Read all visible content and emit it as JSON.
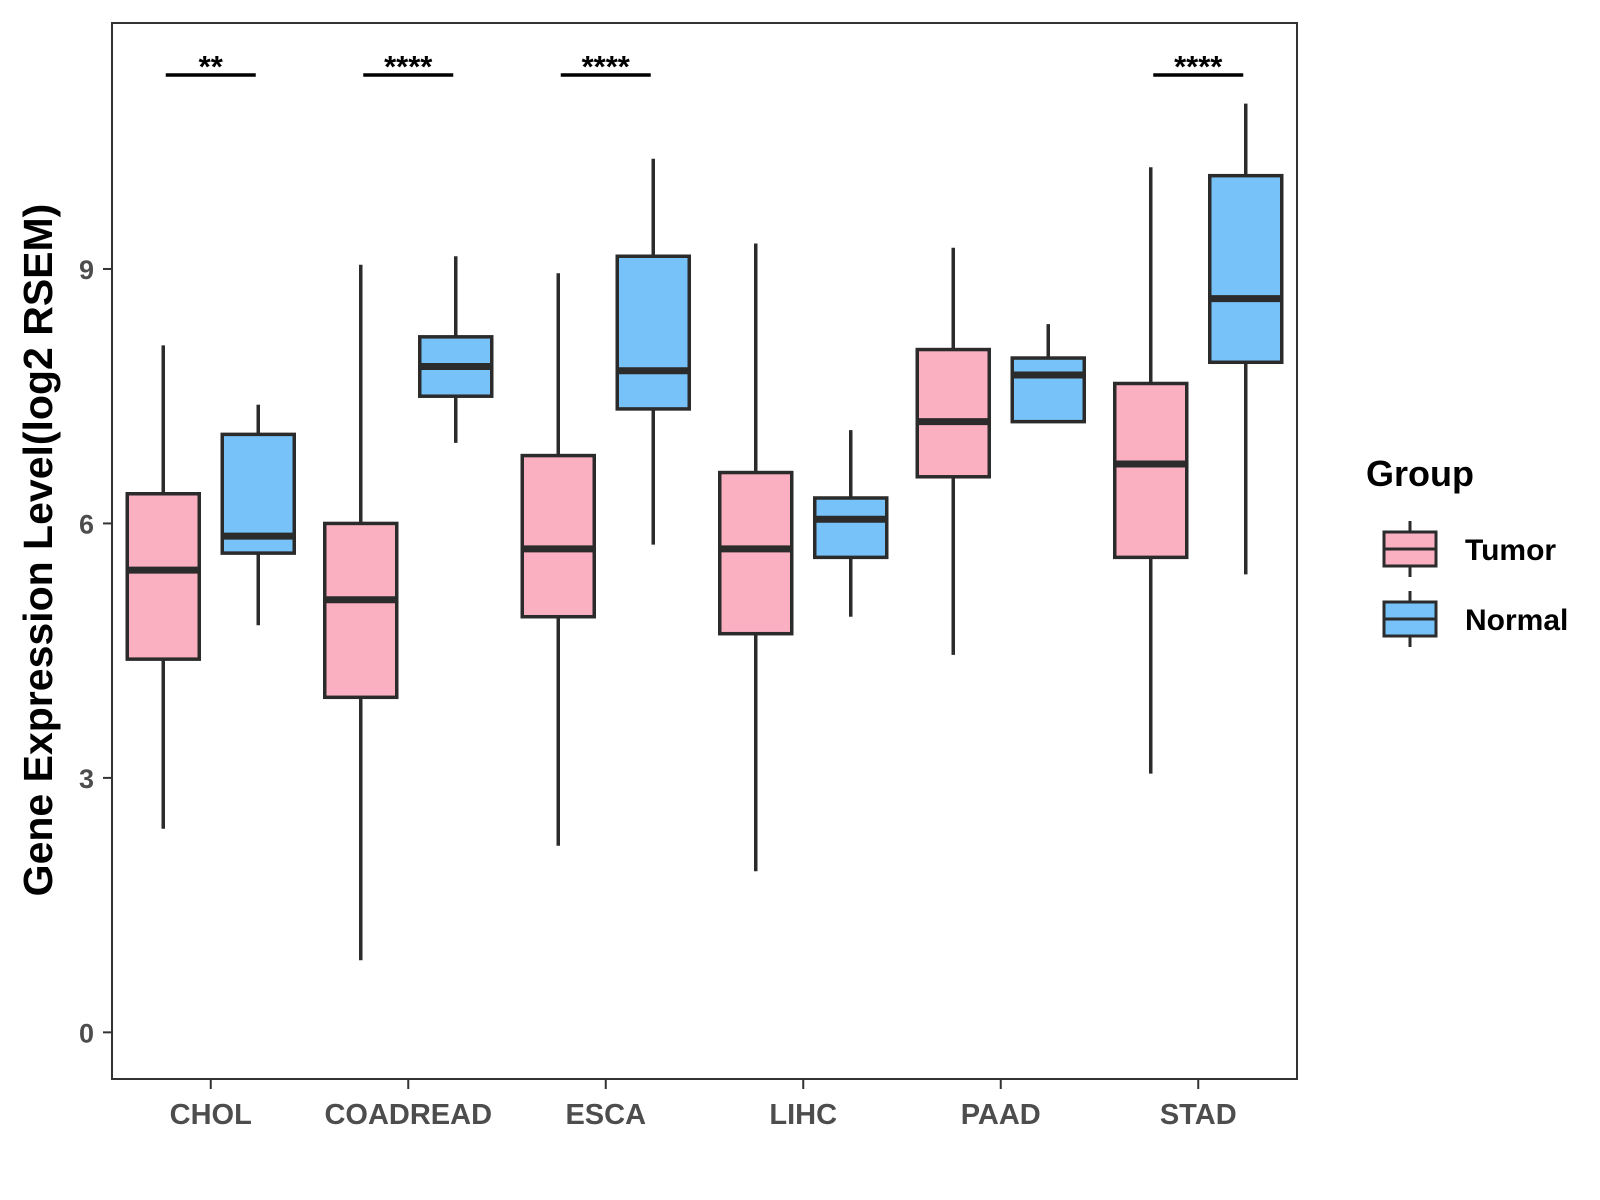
{
  "chart_data": {
    "type": "boxplot",
    "title": "",
    "xlabel": "",
    "ylabel": "Gene Expression Level(log2 RSEM)",
    "ylim": [
      -0.55,
      11.9
    ],
    "yticks": [
      0,
      3,
      6,
      9
    ],
    "grid": false,
    "categories": [
      "CHOL",
      "COADREAD",
      "ESCA",
      "LIHC",
      "PAAD",
      "STAD"
    ],
    "legend": {
      "title": "Group",
      "position": "right",
      "entries": [
        {
          "name": "Tumor",
          "color": "#fbb0c2"
        },
        {
          "name": "Normal",
          "color": "#77c2f8"
        }
      ]
    },
    "series": [
      {
        "name": "Tumor",
        "color": "#fbb0c2",
        "boxes": [
          {
            "min": 2.4,
            "q1": 4.4,
            "median": 5.45,
            "q3": 6.35,
            "max": 8.1
          },
          {
            "min": 0.85,
            "q1": 3.95,
            "median": 5.1,
            "q3": 6.0,
            "max": 9.05
          },
          {
            "min": 2.2,
            "q1": 4.9,
            "median": 5.7,
            "q3": 6.8,
            "max": 8.95
          },
          {
            "min": 1.9,
            "q1": 4.7,
            "median": 5.7,
            "q3": 6.6,
            "max": 9.3
          },
          {
            "min": 4.45,
            "q1": 6.55,
            "median": 7.2,
            "q3": 8.05,
            "max": 9.25
          },
          {
            "min": 3.05,
            "q1": 5.6,
            "median": 6.7,
            "q3": 7.65,
            "max": 10.2
          }
        ]
      },
      {
        "name": "Normal",
        "color": "#77c2f8",
        "boxes": [
          {
            "min": 4.8,
            "q1": 5.65,
            "median": 5.85,
            "q3": 7.05,
            "max": 7.4
          },
          {
            "min": 6.95,
            "q1": 7.5,
            "median": 7.85,
            "q3": 8.2,
            "max": 9.15
          },
          {
            "min": 5.75,
            "q1": 7.35,
            "median": 7.8,
            "q3": 9.15,
            "max": 10.3
          },
          {
            "min": 4.9,
            "q1": 5.6,
            "median": 6.05,
            "q3": 6.3,
            "max": 7.1
          },
          {
            "min": 7.2,
            "q1": 7.2,
            "median": 7.75,
            "q3": 7.95,
            "max": 8.35
          },
          {
            "min": 5.4,
            "q1": 7.9,
            "median": 8.65,
            "q3": 10.1,
            "max": 10.95
          }
        ]
      }
    ],
    "annotations": [
      {
        "category": "CHOL",
        "label": "**"
      },
      {
        "category": "COADREAD",
        "label": "****"
      },
      {
        "category": "ESCA",
        "label": "****"
      },
      {
        "category": "STAD",
        "label": "****"
      }
    ]
  }
}
